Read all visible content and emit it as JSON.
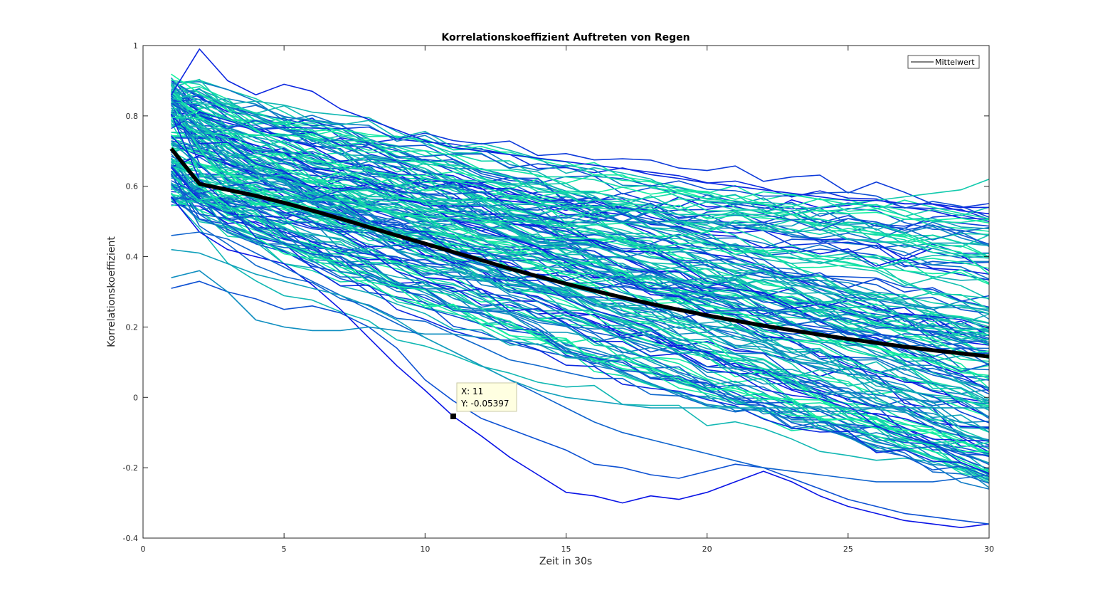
{
  "chart_data": {
    "type": "line",
    "title": "Korrelationskoeffizient Auftreten von Regen",
    "xlabel": "Zeit in 30s",
    "ylabel": "Korrelationskoeffizient",
    "xlim": [
      0,
      30
    ],
    "ylim": [
      -0.4,
      1
    ],
    "xticks": [
      0,
      5,
      10,
      15,
      20,
      25,
      30
    ],
    "xtick_labels": [
      "0",
      "5",
      "10",
      "15",
      "20",
      "25",
      "30"
    ],
    "yticks": [
      -0.4,
      -0.2,
      0,
      0.2,
      0.4,
      0.6,
      0.8,
      1
    ],
    "ytick_labels": [
      "-0.4",
      "-0.2",
      "0",
      "0.2",
      "0.4",
      "0.6",
      "0.8",
      "1"
    ],
    "grid": false,
    "legend": {
      "placement": "top-right",
      "entries": [
        "Mittelwert"
      ]
    },
    "series_colors": {
      "start": "#0a14e6",
      "end": "#14f5a0",
      "mean": "#000000"
    },
    "mean_series": {
      "name": "Mittelwert",
      "x": [
        1,
        2,
        3,
        4,
        5,
        6,
        7,
        8,
        9,
        10,
        11,
        12,
        13,
        14,
        15,
        16,
        17,
        18,
        19,
        20,
        21,
        22,
        23,
        24,
        25,
        26,
        27,
        28,
        29,
        30
      ],
      "values": [
        0.707,
        0.607,
        0.59,
        0.573,
        0.553,
        0.531,
        0.508,
        0.484,
        0.46,
        0.437,
        0.413,
        0.39,
        0.366,
        0.344,
        0.323,
        0.303,
        0.284,
        0.266,
        0.249,
        0.233,
        0.218,
        0.204,
        0.191,
        0.178,
        0.166,
        0.155,
        0.144,
        0.134,
        0.125,
        0.116
      ]
    },
    "series": [
      {
        "x": [
          1,
          2,
          3,
          4,
          5,
          6,
          7,
          8,
          9,
          10,
          11,
          12,
          13,
          14,
          15,
          16,
          17,
          18,
          19,
          20,
          21,
          22,
          23,
          24,
          25,
          26,
          27,
          28,
          29,
          30
        ],
        "values": [
          0.57,
          0.47,
          0.42,
          0.4,
          0.38,
          0.32,
          0.25,
          0.17,
          0.09,
          0.02,
          -0.054,
          -0.11,
          -0.17,
          -0.22,
          -0.27,
          -0.28,
          -0.3,
          -0.28,
          -0.29,
          -0.27,
          -0.24,
          -0.21,
          -0.24,
          -0.28,
          -0.31,
          -0.33,
          -0.35,
          -0.36,
          -0.37,
          -0.36
        ]
      },
      {
        "x": [
          1,
          2,
          3,
          4,
          5,
          6,
          7,
          8,
          9,
          10,
          11,
          12,
          13,
          14,
          15,
          16,
          17,
          18,
          19,
          20,
          21,
          22,
          23,
          24,
          25,
          26,
          27,
          28,
          29,
          30
        ],
        "values": [
          0.31,
          0.33,
          0.3,
          0.28,
          0.25,
          0.26,
          0.24,
          0.2,
          0.14,
          0.05,
          -0.01,
          -0.06,
          -0.09,
          -0.12,
          -0.15,
          -0.19,
          -0.2,
          -0.22,
          -0.23,
          -0.21,
          -0.19,
          -0.2,
          -0.23,
          -0.26,
          -0.29,
          -0.31,
          -0.33,
          -0.34,
          -0.35,
          -0.36
        ]
      },
      {
        "x": [
          1,
          2,
          3,
          4,
          5,
          6,
          7,
          8,
          9,
          10,
          11,
          12,
          13,
          14,
          15,
          16,
          17,
          18,
          19,
          20,
          21,
          22,
          23,
          24,
          25,
          26,
          27,
          28,
          29,
          30
        ],
        "values": [
          0.34,
          0.36,
          0.3,
          0.22,
          0.2,
          0.19,
          0.19,
          0.2,
          0.19,
          0.18,
          0.18,
          0.17,
          0.16,
          0.15,
          0.13,
          0.1,
          0.07,
          0.04,
          0.01,
          -0.02,
          -0.03,
          -0.04,
          -0.04,
          -0.04,
          -0.04,
          -0.03,
          -0.03,
          -0.03,
          -0.03,
          -0.03
        ]
      },
      {
        "x": [
          1,
          2,
          3,
          4,
          5,
          6,
          7,
          8,
          9,
          10,
          11,
          12,
          13,
          14,
          15,
          16,
          17,
          18,
          19,
          20,
          21,
          22,
          23,
          24,
          25,
          26,
          27,
          28,
          29,
          30
        ],
        "values": [
          0.68,
          0.62,
          0.6,
          0.58,
          0.57,
          0.56,
          0.56,
          0.57,
          0.57,
          0.56,
          0.56,
          0.56,
          0.55,
          0.55,
          0.54,
          0.54,
          0.53,
          0.53,
          0.52,
          0.52,
          0.52,
          0.52,
          0.53,
          0.54,
          0.55,
          0.56,
          0.57,
          0.58,
          0.59,
          0.62
        ]
      },
      {
        "x": [
          1,
          2,
          3,
          4,
          5,
          6,
          7,
          8,
          9,
          10,
          11,
          12,
          13,
          14,
          15,
          16,
          17,
          18,
          19,
          20,
          21,
          22,
          23,
          24,
          25,
          26,
          27,
          28,
          29,
          30
        ],
        "values": [
          0.86,
          0.99,
          0.9,
          0.86,
          0.89,
          0.87,
          0.82,
          0.79,
          0.76,
          0.73,
          0.71,
          0.7,
          0.69,
          0.68,
          0.67,
          0.66,
          0.65,
          0.64,
          0.63,
          0.61,
          0.6,
          0.59,
          0.58,
          0.57,
          0.56,
          0.56,
          0.55,
          0.55,
          0.54,
          0.54
        ]
      },
      {
        "x": [
          1,
          2,
          3,
          4,
          5,
          6,
          7,
          8,
          9,
          10,
          11,
          12,
          13,
          14,
          15,
          16,
          17,
          18,
          19,
          20,
          21,
          22,
          23,
          24,
          25,
          26,
          27,
          28,
          29,
          30
        ],
        "values": [
          0.46,
          0.47,
          0.45,
          0.41,
          0.37,
          0.33,
          0.29,
          0.25,
          0.21,
          0.17,
          0.13,
          0.09,
          0.05,
          0.01,
          -0.03,
          -0.07,
          -0.1,
          -0.12,
          -0.14,
          -0.16,
          -0.18,
          -0.2,
          -0.21,
          -0.22,
          -0.23,
          -0.24,
          -0.24,
          -0.24,
          -0.23,
          -0.22
        ]
      },
      {
        "x": [
          1,
          2,
          3,
          4,
          5,
          6,
          7,
          8,
          9,
          10,
          11,
          12,
          13,
          14,
          15,
          16,
          17,
          18,
          19,
          20,
          21,
          22,
          23,
          24,
          25,
          26,
          27,
          28,
          29,
          30
        ],
        "values": [
          0.42,
          0.41,
          0.38,
          0.35,
          0.33,
          0.31,
          0.29,
          0.26,
          0.22,
          0.17,
          0.13,
          0.09,
          0.05,
          0.02,
          0.0,
          -0.01,
          -0.02,
          -0.03,
          -0.03,
          -0.03,
          -0.03,
          -0.03,
          -0.03,
          -0.03,
          -0.03,
          -0.03,
          -0.03,
          -0.03,
          -0.03,
          -0.03
        ]
      }
    ]
  },
  "datatip": {
    "x_text": "X: 11",
    "y_text": "Y: -0.05397",
    "x": 11,
    "y": -0.05397
  }
}
